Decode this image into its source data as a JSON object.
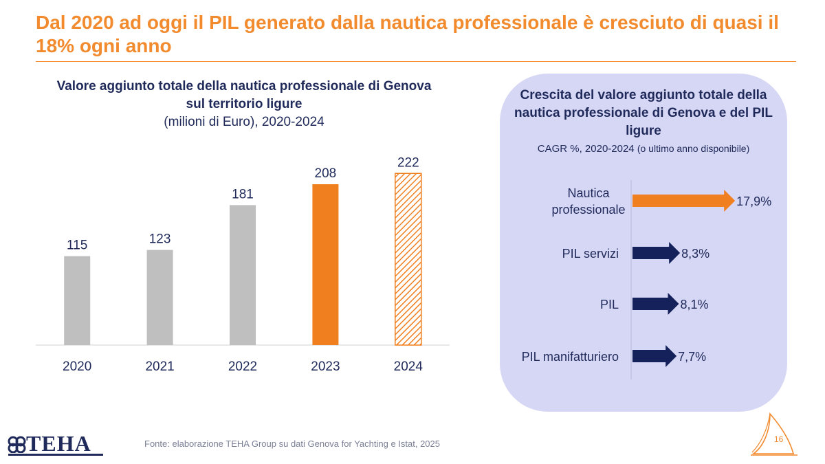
{
  "headline": "Dal 2020 ad oggi il PIL generato dalla nautica professionale è cresciuto di quasi il 18% ogni anno",
  "left_chart": {
    "title_line1": "Valore aggiunto totale della nautica professionale di Genova",
    "title_line2": "sul territorio ligure",
    "subtitle": "(milioni di Euro), 2020-2024"
  },
  "right_panel": {
    "title": "Crescita del valore aggiunto totale della nautica professionale di Genova e del PIL ligure",
    "subtitle_main": "CAGR %, 2020-2024",
    "subtitle_paren": "(o ultimo anno disponibile)"
  },
  "chart_data": [
    {
      "type": "bar",
      "categories": [
        "2020",
        "2021",
        "2022",
        "2023",
        "2024"
      ],
      "values": [
        115,
        123,
        181,
        208,
        222
      ],
      "value_labels": [
        "115",
        "123",
        "181",
        "208",
        "222"
      ],
      "bar_styles": [
        "solid",
        "solid",
        "solid",
        "solid",
        "hatched"
      ],
      "bar_colors": [
        "#bfbfbf",
        "#bfbfbf",
        "#bfbfbf",
        "#f07f1f",
        "#f07f1f"
      ],
      "ylim": [
        0,
        240
      ]
    },
    {
      "type": "bar",
      "orientation": "horizontal",
      "categories": [
        "Nautica professionale",
        "PIL servizi",
        "PIL",
        "PIL manifatturiero"
      ],
      "category_lines": [
        [
          "Nautica",
          "professionale"
        ],
        [
          "PIL servizi"
        ],
        [
          "PIL"
        ],
        [
          "PIL manifatturiero"
        ]
      ],
      "values": [
        17.9,
        8.3,
        8.1,
        7.7
      ],
      "value_labels": [
        "17,9%",
        "8,3%",
        "8,1%",
        "7,7%"
      ],
      "colors": [
        "#f07f1f",
        "#14215a",
        "#14215a",
        "#14215a"
      ],
      "xlim": [
        0,
        18
      ]
    }
  ],
  "footer": {
    "source": "Fonte: elaborazione TEHA Group su dati Genova for Yachting e Istat, 2025",
    "logo_text": "TEHA",
    "page_number": "16"
  },
  "colors": {
    "accent": "#f28a2e",
    "navy": "#1f2a5a",
    "panel": "#d6d6f5",
    "bar_gray": "#bfbfbf"
  }
}
